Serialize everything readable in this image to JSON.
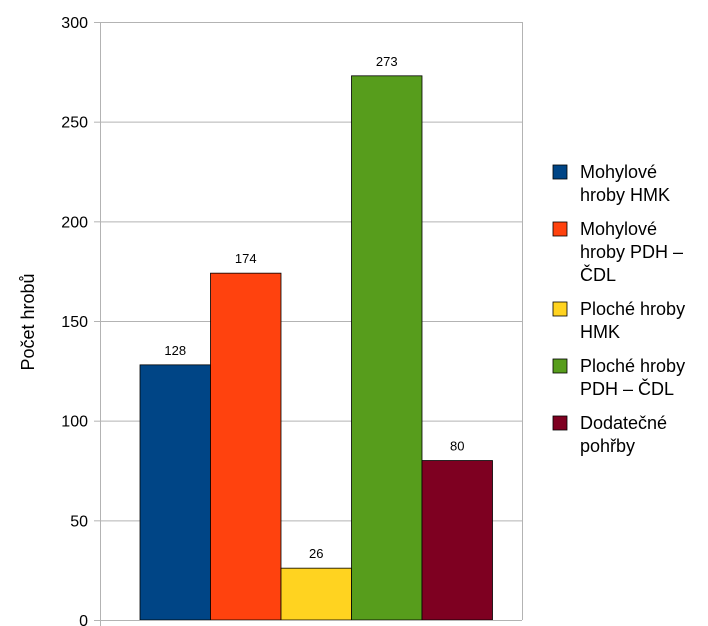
{
  "chart_data": {
    "type": "bar",
    "title": "",
    "xlabel": "",
    "ylabel": "Počet hrobů",
    "ylim": [
      0,
      300
    ],
    "yticks": [
      0,
      50,
      100,
      150,
      200,
      250,
      300
    ],
    "grid": true,
    "legend_position": "right",
    "series": [
      {
        "name": "Mohylové hroby HMK",
        "name_lines": [
          "Mohylové",
          "hroby HMK"
        ],
        "value": 128,
        "color": "#004586"
      },
      {
        "name": "Mohylové hroby PDH – ČDL",
        "name_lines": [
          "Mohylové",
          "hroby PDH –",
          "ČDL"
        ],
        "value": 174,
        "color": "#ff420e"
      },
      {
        "name": "Ploché hroby HMK",
        "name_lines": [
          "Ploché hroby",
          "HMK"
        ],
        "value": 26,
        "color": "#ffd320"
      },
      {
        "name": "Ploché hroby PDH – ČDL",
        "name_lines": [
          "Ploché hroby",
          "PDH – ČDL"
        ],
        "value": 273,
        "color": "#579d1c"
      },
      {
        "name": "Dodatečné pohřby",
        "name_lines": [
          "Dodatečné",
          "pohřby"
        ],
        "value": 80,
        "color": "#7e0021"
      }
    ]
  }
}
